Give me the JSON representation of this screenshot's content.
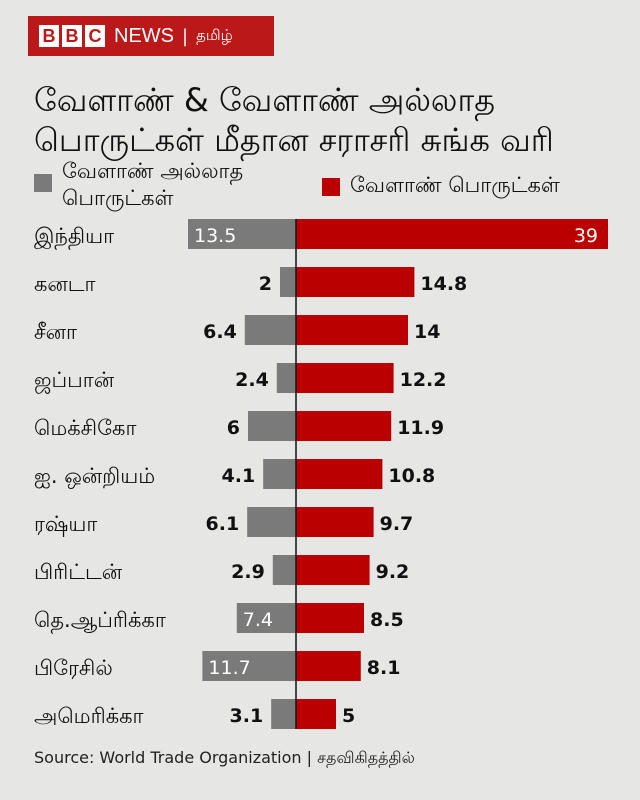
{
  "logo": {
    "b1": "B",
    "b2": "B",
    "b3": "C",
    "news": "NEWS",
    "sep": "|",
    "lang": "தமிழ்"
  },
  "chart_data": {
    "type": "bar",
    "title": "வேளாண் & வேளாண் அல்லாத பொருட்கள் மீதான சராசரி சுங்க வரி",
    "categories": [
      "இந்தியா",
      "கனடா",
      "சீனா",
      "ஜப்பான்",
      "மெக்சிகோ",
      "ஐ. ஒன்றியம்",
      "ரஷ்யா",
      "பிரிட்டன்",
      "தெ.ஆப்ரிக்கா",
      "பிரேசில்",
      "அமெரிக்கா"
    ],
    "series": [
      {
        "name": "வேளாண் அல்லாத பொருட்கள்",
        "color": "#7a7a7a",
        "values": [
          13.5,
          2,
          6.4,
          2.4,
          6,
          4.1,
          6.1,
          2.9,
          7.4,
          11.7,
          3.1
        ]
      },
      {
        "name": "வேளாண் பொருட்கள்",
        "color": "#bb0000",
        "values": [
          39,
          14.8,
          14,
          12.2,
          11.9,
          10.8,
          9.7,
          9.2,
          8.5,
          8.1,
          5
        ]
      }
    ],
    "value_labels": {
      "nonagri": [
        "13.5",
        "2",
        "6.4",
        "2.4",
        "6",
        "4.1",
        "6.1",
        "2.9",
        "7.4",
        "11.7",
        "3.1"
      ],
      "agri": [
        "39",
        "14.8",
        "14",
        "12.2",
        "11.9",
        "10.8",
        "9.7",
        "9.2",
        "8.5",
        "8.1",
        "5"
      ]
    },
    "legend_placement": "top",
    "grid": false
  },
  "source": "Source: World Trade Organization | சதவிகிதத்தில்"
}
